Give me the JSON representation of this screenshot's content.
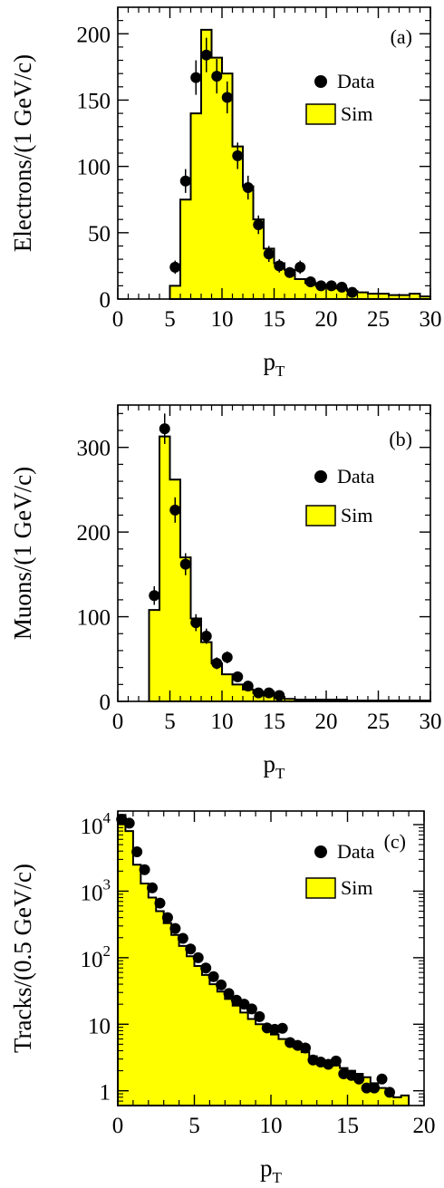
{
  "colors": {
    "sim_fill": "#ffff00",
    "sim_line": "#000000",
    "data_marker": "#000000",
    "background": "#ffffff"
  },
  "chart_data": [
    {
      "type": "bar",
      "panel_label": "(a)",
      "xlabel": "p",
      "xlabel_sub": "T",
      "ylabel": "Electrons/(1 GeV/c)",
      "xlim": [
        0,
        30
      ],
      "ylim": [
        0,
        220
      ],
      "yscale": "linear",
      "xticks": [
        0,
        5,
        10,
        15,
        20,
        25,
        30
      ],
      "yticks": [
        0,
        50,
        100,
        150,
        200
      ],
      "xticks_minor": [
        1,
        2,
        3,
        4,
        6,
        7,
        8,
        9,
        11,
        12,
        13,
        14,
        16,
        17,
        18,
        19,
        21,
        22,
        23,
        24,
        26,
        27,
        28,
        29
      ],
      "yticks_minor": [
        10,
        20,
        30,
        40,
        60,
        70,
        80,
        90,
        110,
        120,
        130,
        140,
        160,
        170,
        180,
        190,
        210
      ],
      "legend": {
        "position": "top-right",
        "entries": [
          "Data",
          "Sim"
        ]
      },
      "series": [
        {
          "name": "Sim",
          "kind": "histogram",
          "bin_edges": [
            5,
            6,
            7,
            8,
            9,
            10,
            11,
            12,
            13,
            14,
            15,
            16,
            17,
            18,
            19,
            20,
            21,
            22,
            23,
            24,
            25,
            26,
            27,
            28,
            29,
            30
          ],
          "values": [
            10,
            75,
            140,
            203,
            182,
            170,
            115,
            85,
            60,
            38,
            27,
            22,
            15,
            12,
            10,
            9,
            8,
            6,
            5,
            4,
            4,
            3,
            3,
            4,
            2
          ]
        },
        {
          "name": "Data",
          "kind": "points",
          "x": [
            5.5,
            6.5,
            7.5,
            8.5,
            9.5,
            10.5,
            11.5,
            12.5,
            13.5,
            14.5,
            15.5,
            16.5,
            17.5,
            18.5,
            19.5,
            20.5,
            21.5,
            22.5
          ],
          "y": [
            24,
            89,
            167,
            184,
            168,
            152,
            108,
            84,
            56,
            34,
            25,
            20,
            24,
            13,
            10,
            10,
            9,
            5
          ],
          "err": [
            5,
            9,
            13,
            13,
            13,
            12,
            10,
            9,
            7,
            6,
            5,
            4,
            5,
            4,
            3,
            3,
            3,
            2
          ]
        }
      ]
    },
    {
      "type": "bar",
      "panel_label": "(b)",
      "xlabel": "p",
      "xlabel_sub": "T",
      "ylabel": "Muons/(1 GeV/c)",
      "xlim": [
        0,
        30
      ],
      "ylim": [
        0,
        350
      ],
      "yscale": "linear",
      "xticks": [
        0,
        5,
        10,
        15,
        20,
        25,
        30
      ],
      "yticks": [
        0,
        100,
        200,
        300
      ],
      "xticks_minor": [
        1,
        2,
        3,
        4,
        6,
        7,
        8,
        9,
        11,
        12,
        13,
        14,
        16,
        17,
        18,
        19,
        21,
        22,
        23,
        24,
        26,
        27,
        28,
        29
      ],
      "yticks_minor": [
        20,
        40,
        60,
        80,
        120,
        140,
        160,
        180,
        220,
        240,
        260,
        280,
        320,
        340
      ],
      "legend": {
        "position": "top-right",
        "entries": [
          "Data",
          "Sim"
        ]
      },
      "series": [
        {
          "name": "Sim",
          "kind": "histogram",
          "bin_edges": [
            3,
            4,
            5,
            6,
            7,
            8,
            9,
            10,
            11,
            12,
            13,
            14,
            15,
            16,
            17,
            18,
            19,
            20,
            21,
            22,
            23,
            24,
            25,
            26,
            27,
            28,
            29,
            30
          ],
          "values": [
            108,
            313,
            262,
            170,
            98,
            70,
            45,
            32,
            20,
            14,
            10,
            7,
            5,
            3,
            2,
            2,
            2,
            2,
            2,
            1,
            1,
            1,
            1,
            1,
            1,
            1,
            1
          ]
        },
        {
          "name": "Data",
          "kind": "points",
          "x": [
            3.5,
            4.5,
            5.5,
            6.5,
            7.5,
            8.5,
            9.5,
            10.5,
            11.5,
            12.5,
            13.5,
            14.5,
            15.5
          ],
          "y": [
            125,
            322,
            226,
            162,
            93,
            77,
            45,
            52,
            29,
            18,
            10,
            10,
            7
          ],
          "err": [
            11,
            18,
            15,
            13,
            10,
            9,
            7,
            7,
            5,
            4,
            3,
            3,
            3
          ]
        }
      ]
    },
    {
      "type": "bar",
      "panel_label": "(c)",
      "xlabel": "p",
      "xlabel_sub": "T",
      "ylabel": "Tracks/(0.5 GeV/c)",
      "xlim": [
        0,
        20
      ],
      "ylim": [
        0.6,
        16000
      ],
      "yscale": "log",
      "xticks": [
        0,
        5,
        10,
        15,
        20
      ],
      "ytick_labels": [
        {
          "value": 10000,
          "base": "10",
          "exp": "4"
        },
        {
          "value": 1000,
          "base": "10",
          "exp": "3"
        },
        {
          "value": 100,
          "base": "10",
          "exp": "2"
        },
        {
          "value": 10,
          "base": "10",
          "exp": ""
        },
        {
          "value": 1,
          "base": "1",
          "exp": ""
        }
      ],
      "xticks_minor": [
        1,
        2,
        3,
        4,
        6,
        7,
        8,
        9,
        11,
        12,
        13,
        14,
        16,
        17,
        18,
        19
      ],
      "legend": {
        "position": "top-right",
        "entries": [
          "Data",
          "Sim"
        ]
      },
      "series": [
        {
          "name": "Sim",
          "kind": "histogram",
          "bin_edges": [
            0,
            0.5,
            1,
            1.5,
            2,
            2.5,
            3,
            3.5,
            4,
            4.5,
            5,
            5.5,
            6,
            6.5,
            7,
            7.5,
            8,
            8.5,
            9,
            9.5,
            10,
            10.5,
            11,
            11.5,
            12,
            12.5,
            13,
            13.5,
            14,
            14.5,
            15,
            15.5,
            16,
            16.5,
            17,
            17.5,
            18,
            18.5,
            19
          ],
          "values": [
            14000,
            8000,
            2500,
            1300,
            800,
            500,
            330,
            220,
            150,
            105,
            75,
            55,
            40,
            31,
            24,
            19,
            15,
            12,
            10,
            8.3,
            7,
            6,
            5.1,
            4.4,
            3.8,
            3.3,
            2.9,
            2.6,
            2.4,
            2.2,
            2,
            1.8,
            1.6,
            1.3,
            1.1,
            0.9,
            0.8,
            0.85
          ]
        },
        {
          "name": "Data",
          "kind": "points",
          "x": [
            0.25,
            0.75,
            1.25,
            1.75,
            2.25,
            2.75,
            3.25,
            3.75,
            4.25,
            4.75,
            5.25,
            5.75,
            6.25,
            6.75,
            7.25,
            7.75,
            8.25,
            8.75,
            9.25,
            9.75,
            10.25,
            10.75,
            11.25,
            11.75,
            12.25,
            12.75,
            13.25,
            13.75,
            14.25,
            14.75,
            15.25,
            15.75,
            16.25,
            16.75,
            17.25,
            17.75
          ],
          "y": [
            12000,
            10500,
            3900,
            2100,
            1120,
            660,
            400,
            275,
            195,
            135,
            100,
            70,
            52,
            39,
            29,
            23,
            20,
            17,
            13,
            8.8,
            8.4,
            8.7,
            5.3,
            4.8,
            4.4,
            2.9,
            2.7,
            2.5,
            2.8,
            1.8,
            1.7,
            1.5,
            1.1,
            1.1,
            1.5,
            0.95
          ],
          "err": []
        }
      ]
    }
  ]
}
